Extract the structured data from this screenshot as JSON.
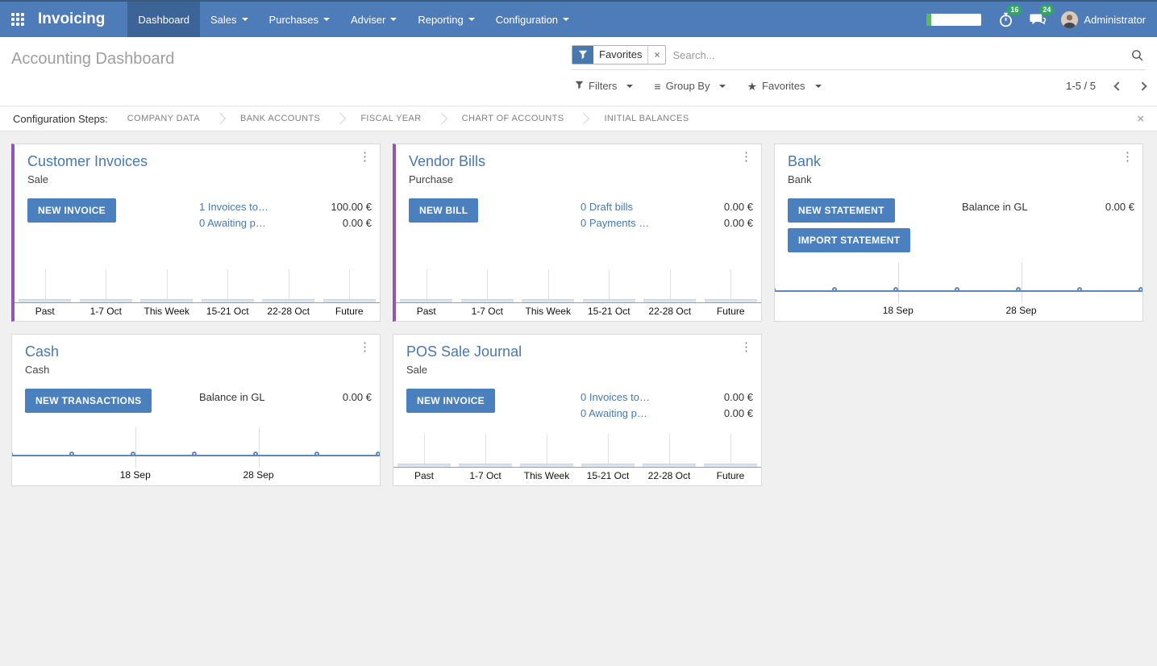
{
  "header": {
    "app_name": "Invoicing",
    "menu_items": [
      {
        "label": "Dashboard",
        "active": true,
        "dropdown": false
      },
      {
        "label": "Sales",
        "dropdown": true
      },
      {
        "label": "Purchases",
        "dropdown": true
      },
      {
        "label": "Adviser",
        "dropdown": true
      },
      {
        "label": "Reporting",
        "dropdown": true
      },
      {
        "label": "Configuration",
        "dropdown": true
      }
    ],
    "timer_badge": "16",
    "chat_badge": "24",
    "user_name": "Administrator"
  },
  "control_panel": {
    "title": "Accounting Dashboard",
    "search": {
      "facet_label": "Favorites",
      "placeholder": "Search..."
    },
    "filters_label": "Filters",
    "group_by_label": "Group By",
    "favorites_label": "Favorites",
    "pager": "1-5 / 5"
  },
  "config_steps": {
    "label": "Configuration Steps:",
    "steps": [
      "COMPANY DATA",
      "BANK ACCOUNTS",
      "FISCAL YEAR",
      "CHART OF ACCOUNTS",
      "INITIAL BALANCES"
    ]
  },
  "cards": [
    {
      "title": "Customer Invoices",
      "subtitle": "Sale",
      "buttons": [
        "NEW INVOICE"
      ],
      "rows": [
        {
          "link": "1 Invoices to…",
          "amount": "100.00 €"
        },
        {
          "link": "0 Awaiting p…",
          "amount": "0.00 €"
        }
      ]
    },
    {
      "title": "Vendor Bills",
      "subtitle": "Purchase",
      "buttons": [
        "NEW BILL"
      ],
      "rows": [
        {
          "link": "0 Draft bills",
          "amount": "0.00 €"
        },
        {
          "link": "0 Payments …",
          "amount": "0.00 €"
        }
      ]
    },
    {
      "title": "Bank",
      "subtitle": "Bank",
      "buttons": [
        "NEW STATEMENT",
        "IMPORT STATEMENT"
      ],
      "balance": {
        "label": "Balance in GL",
        "amount": "0.00 €"
      }
    },
    {
      "title": "Cash",
      "subtitle": "Cash",
      "buttons": [
        "NEW TRANSACTIONS"
      ],
      "balance": {
        "label": "Balance in GL",
        "amount": "0.00 €"
      }
    },
    {
      "title": "POS Sale Journal",
      "subtitle": "Sale",
      "buttons": [
        "NEW INVOICE"
      ],
      "rows": [
        {
          "link": "0 Invoices to…",
          "amount": "0.00 €"
        },
        {
          "link": "0 Awaiting p…",
          "amount": "0.00 €"
        }
      ]
    }
  ],
  "chart_data": [
    {
      "type": "bar",
      "title": "Customer Invoices",
      "categories": [
        "Past",
        "1-7 Oct",
        "This Week",
        "15-21 Oct",
        "22-28 Oct",
        "Future"
      ],
      "values": [
        0,
        0,
        0,
        0,
        0,
        0
      ],
      "ylim": [
        0,
        1
      ],
      "grid": false
    },
    {
      "type": "bar",
      "title": "Vendor Bills",
      "categories": [
        "Past",
        "1-7 Oct",
        "This Week",
        "15-21 Oct",
        "22-28 Oct",
        "Future"
      ],
      "values": [
        0,
        0,
        0,
        0,
        0,
        0
      ],
      "ylim": [
        0,
        1
      ],
      "grid": false
    },
    {
      "type": "line",
      "title": "Bank",
      "x_tick_labels": [
        "18 Sep",
        "28 Sep"
      ],
      "x_tick_positions": [
        0.335,
        0.67
      ],
      "values": [
        0,
        0,
        0,
        0,
        0,
        0,
        0
      ],
      "marker": "circle"
    },
    {
      "type": "line",
      "title": "Cash",
      "x_tick_labels": [
        "18 Sep",
        "28 Sep"
      ],
      "x_tick_positions": [
        0.335,
        0.67
      ],
      "values": [
        0,
        0,
        0,
        0,
        0,
        0,
        0
      ],
      "marker": "circle"
    },
    {
      "type": "bar",
      "title": "POS Sale Journal",
      "categories": [
        "Past",
        "1-7 Oct",
        "This Week",
        "15-21 Oct",
        "22-28 Oct",
        "Future"
      ],
      "values": [
        0,
        0,
        0,
        0,
        0,
        0
      ],
      "ylim": [
        0,
        1
      ],
      "grid": false
    }
  ],
  "icons": {
    "close": "×",
    "kebab": "⋮",
    "group_by": "≡",
    "star": "★"
  },
  "colors": {
    "navbar": "#4e7cb8",
    "navbar_dark": "#3d6496",
    "primary": "#4a80bd",
    "link": "#4878ae",
    "accent": "#9156b0",
    "badge": "#31a565",
    "chart_line": "#6186bc"
  }
}
